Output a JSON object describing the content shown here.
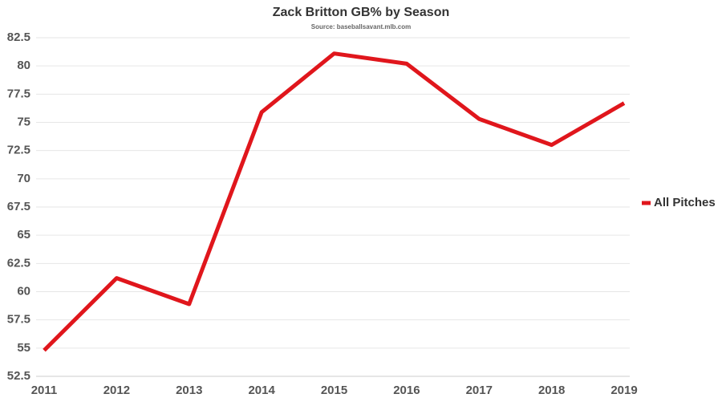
{
  "chart_data": {
    "type": "line",
    "title": "Zack Britton GB% by Season",
    "subtitle": "Source: baseballsavant.mlb.com",
    "categories": [
      "2011",
      "2012",
      "2013",
      "2014",
      "2015",
      "2016",
      "2017",
      "2018",
      "2019"
    ],
    "series": [
      {
        "name": "All Pitches",
        "color": "#e0161c",
        "values": [
          54.8,
          61.2,
          58.9,
          75.9,
          81.1,
          80.2,
          75.3,
          73.0,
          76.7
        ]
      }
    ],
    "ylim": [
      52.5,
      82.5
    ],
    "yticks": [
      52.5,
      55,
      57.5,
      60,
      62.5,
      65,
      67.5,
      70,
      72.5,
      75,
      77.5,
      80,
      82.5
    ],
    "grid": true,
    "legend": "right"
  }
}
